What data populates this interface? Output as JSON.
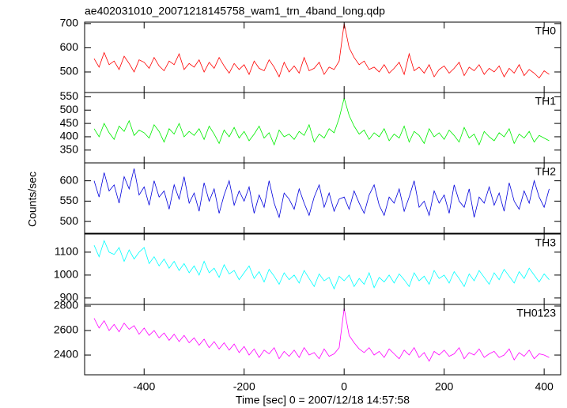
{
  "title": "ae402031010_20071218145758_wam1_trn_4band_long.qdp",
  "ylabel": "Counts/sec",
  "xlabel": "Time [sec] 0 = 2007/12/18 14:57:58",
  "chart_data": [
    {
      "type": "line",
      "xlim": [
        -519,
        433
      ],
      "ylim": [
        415,
        706
      ],
      "yticks": [
        500,
        600,
        700
      ],
      "x": [
        -500,
        -490,
        -480,
        -470,
        -460,
        -450,
        -440,
        -430,
        -420,
        -410,
        -400,
        -390,
        -380,
        -370,
        -360,
        -350,
        -340,
        -330,
        -320,
        -310,
        -300,
        -290,
        -280,
        -270,
        -260,
        -250,
        -240,
        -230,
        -220,
        -210,
        -200,
        -190,
        -180,
        -170,
        -160,
        -150,
        -140,
        -130,
        -120,
        -110,
        -100,
        -90,
        -80,
        -70,
        -60,
        -50,
        -40,
        -30,
        -20,
        -10,
        0,
        10,
        20,
        30,
        40,
        50,
        60,
        70,
        80,
        90,
        100,
        110,
        120,
        130,
        140,
        150,
        160,
        170,
        180,
        190,
        200,
        210,
        220,
        230,
        240,
        250,
        260,
        270,
        280,
        290,
        300,
        310,
        320,
        330,
        340,
        350,
        360,
        370,
        380,
        390,
        400,
        410
      ],
      "series": [
        {
          "name": "TH0",
          "color": "#ff0000",
          "values": [
            555,
            520,
            580,
            530,
            545,
            510,
            565,
            535,
            500,
            550,
            540,
            515,
            560,
            525,
            505,
            545,
            530,
            575,
            510,
            535,
            520,
            550,
            500,
            540,
            515,
            560,
            525,
            495,
            535,
            510,
            530,
            490,
            545,
            515,
            505,
            550,
            520,
            480,
            540,
            500,
            525,
            495,
            560,
            505,
            515,
            540,
            490,
            520,
            510,
            545,
            700,
            600,
            560,
            530,
            545,
            510,
            520,
            500,
            530,
            495,
            515,
            540,
            490,
            575,
            505,
            520,
            495,
            530,
            480,
            510,
            525,
            495,
            515,
            540,
            485,
            520,
            505,
            530,
            490,
            515,
            500,
            525,
            480,
            515,
            495,
            530,
            485,
            510,
            495,
            475,
            505,
            490
          ]
        }
      ]
    },
    {
      "type": "line",
      "xlim": [
        -519,
        433
      ],
      "ylim": [
        302,
        566
      ],
      "yticks": [
        350,
        400,
        450,
        500,
        550
      ],
      "x": [
        -500,
        -490,
        -480,
        -470,
        -460,
        -450,
        -440,
        -430,
        -420,
        -410,
        -400,
        -390,
        -380,
        -370,
        -360,
        -350,
        -340,
        -330,
        -320,
        -310,
        -300,
        -290,
        -280,
        -270,
        -260,
        -250,
        -240,
        -230,
        -220,
        -210,
        -200,
        -190,
        -180,
        -170,
        -160,
        -150,
        -140,
        -130,
        -120,
        -110,
        -100,
        -90,
        -80,
        -70,
        -60,
        -50,
        -40,
        -30,
        -20,
        -10,
        0,
        10,
        20,
        30,
        40,
        50,
        60,
        70,
        80,
        90,
        100,
        110,
        120,
        130,
        140,
        150,
        160,
        170,
        180,
        190,
        200,
        210,
        220,
        230,
        240,
        250,
        260,
        270,
        280,
        290,
        300,
        310,
        320,
        330,
        340,
        350,
        360,
        370,
        380,
        390,
        400,
        410
      ],
      "series": [
        {
          "name": "TH1",
          "color": "#00ee00",
          "values": [
            430,
            400,
            450,
            415,
            390,
            440,
            420,
            460,
            405,
            425,
            415,
            395,
            445,
            420,
            380,
            430,
            410,
            450,
            400,
            420,
            405,
            430,
            390,
            440,
            410,
            375,
            425,
            400,
            435,
            395,
            420,
            385,
            410,
            440,
            395,
            415,
            370,
            425,
            400,
            410,
            390,
            420,
            405,
            445,
            380,
            410,
            395,
            430,
            415,
            470,
            545,
            480,
            440,
            410,
            425,
            390,
            415,
            400,
            430,
            385,
            410,
            395,
            440,
            380,
            420,
            405,
            375,
            430,
            400,
            415,
            390,
            425,
            405,
            380,
            435,
            395,
            410,
            370,
            420,
            400,
            385,
            415,
            400,
            430,
            375,
            410,
            395,
            420,
            380,
            405,
            395,
            385
          ]
        }
      ]
    },
    {
      "type": "line",
      "xlim": [
        -519,
        433
      ],
      "ylim": [
        471,
        644
      ],
      "yticks": [
        500,
        550,
        600
      ],
      "x": [
        -500,
        -490,
        -480,
        -470,
        -460,
        -450,
        -440,
        -430,
        -420,
        -410,
        -400,
        -390,
        -380,
        -370,
        -360,
        -350,
        -340,
        -330,
        -320,
        -310,
        -300,
        -290,
        -280,
        -270,
        -260,
        -250,
        -240,
        -230,
        -220,
        -210,
        -200,
        -190,
        -180,
        -170,
        -160,
        -150,
        -140,
        -130,
        -120,
        -110,
        -100,
        -90,
        -80,
        -70,
        -60,
        -50,
        -40,
        -30,
        -20,
        -10,
        0,
        10,
        20,
        30,
        40,
        50,
        60,
        70,
        80,
        90,
        100,
        110,
        120,
        130,
        140,
        150,
        160,
        170,
        180,
        190,
        200,
        210,
        220,
        230,
        240,
        250,
        260,
        270,
        280,
        290,
        300,
        310,
        320,
        330,
        340,
        350,
        360,
        370,
        380,
        390,
        400,
        410
      ],
      "series": [
        {
          "name": "TH2",
          "color": "#0000dd",
          "values": [
            600,
            560,
            620,
            575,
            590,
            545,
            610,
            580,
            630,
            565,
            585,
            540,
            600,
            560,
            575,
            530,
            590,
            555,
            610,
            545,
            570,
            525,
            595,
            550,
            580,
            520,
            565,
            600,
            540,
            575,
            550,
            585,
            520,
            565,
            535,
            600,
            545,
            510,
            570,
            555,
            530,
            580,
            545,
            515,
            560,
            590,
            535,
            570,
            525,
            555,
            560,
            530,
            575,
            545,
            520,
            565,
            590,
            540,
            515,
            560,
            545,
            580,
            525,
            560,
            600,
            535,
            550,
            515,
            575,
            545,
            565,
            520,
            590,
            550,
            535,
            580,
            510,
            560,
            545,
            585,
            540,
            570,
            525,
            595,
            550,
            530,
            575,
            545,
            600,
            560,
            535,
            580
          ]
        }
      ]
    },
    {
      "type": "line",
      "xlim": [
        -519,
        433
      ],
      "ylim": [
        872,
        1179
      ],
      "yticks": [
        900,
        1000,
        1100
      ],
      "x": [
        -500,
        -490,
        -480,
        -470,
        -460,
        -450,
        -440,
        -430,
        -420,
        -410,
        -400,
        -390,
        -380,
        -370,
        -360,
        -350,
        -340,
        -330,
        -320,
        -310,
        -300,
        -290,
        -280,
        -270,
        -260,
        -250,
        -240,
        -230,
        -220,
        -210,
        -200,
        -190,
        -180,
        -170,
        -160,
        -150,
        -140,
        -130,
        -120,
        -110,
        -100,
        -90,
        -80,
        -70,
        -60,
        -50,
        -40,
        -30,
        -20,
        -10,
        0,
        10,
        20,
        30,
        40,
        50,
        60,
        70,
        80,
        90,
        100,
        110,
        120,
        130,
        140,
        150,
        160,
        170,
        180,
        190,
        200,
        210,
        220,
        230,
        240,
        250,
        260,
        270,
        280,
        290,
        300,
        310,
        320,
        330,
        340,
        350,
        360,
        370,
        380,
        390,
        400,
        410
      ],
      "series": [
        {
          "name": "TH3",
          "color": "#00ffff",
          "values": [
            1130,
            1080,
            1150,
            1100,
            1090,
            1120,
            1060,
            1110,
            1070,
            1100,
            1120,
            1050,
            1080,
            1040,
            1070,
            1030,
            1060,
            1020,
            1050,
            1010,
            1040,
            1000,
            1060,
            1010,
            1030,
            990,
            1045,
            1005,
            1020,
            980,
            1010,
            1040,
            985,
            1015,
            970,
            1025,
            995,
            960,
            1010,
            980,
            1000,
            965,
            1020,
            985,
            950,
            1005,
            975,
            990,
            940,
            995,
            975,
            1000,
            950,
            985,
            960,
            1010,
            945,
            990,
            970,
            1000,
            965,
            1005,
            980,
            950,
            1010,
            975,
            995,
            960,
            1020,
            985,
            1000,
            965,
            1015,
            985,
            950,
            1005,
            975,
            1020,
            990,
            960,
            1010,
            980,
            1025,
            995,
            965,
            1015,
            985,
            1030,
            1000,
            970,
            1005,
            980
          ]
        }
      ]
    },
    {
      "type": "line",
      "xlim": [
        -519,
        433
      ],
      "ylim": [
        2239,
        2813
      ],
      "yticks": [
        2400,
        2600,
        2800
      ],
      "xticks": [
        -400,
        -200,
        0,
        200,
        400
      ],
      "x": [
        -500,
        -490,
        -480,
        -470,
        -460,
        -450,
        -440,
        -430,
        -420,
        -410,
        -400,
        -390,
        -380,
        -370,
        -360,
        -350,
        -340,
        -330,
        -320,
        -310,
        -300,
        -290,
        -280,
        -270,
        -260,
        -250,
        -240,
        -230,
        -220,
        -210,
        -200,
        -190,
        -180,
        -170,
        -160,
        -150,
        -140,
        -130,
        -120,
        -110,
        -100,
        -90,
        -80,
        -70,
        -60,
        -50,
        -40,
        -30,
        -20,
        -10,
        0,
        10,
        20,
        30,
        40,
        50,
        60,
        70,
        80,
        90,
        100,
        110,
        120,
        130,
        140,
        150,
        160,
        170,
        180,
        190,
        200,
        210,
        220,
        230,
        240,
        250,
        260,
        270,
        280,
        290,
        300,
        310,
        320,
        330,
        340,
        350,
        360,
        370,
        380,
        390,
        400,
        410
      ],
      "series": [
        {
          "name": "TH0123",
          "color": "#ff00ff",
          "values": [
            2700,
            2620,
            2680,
            2600,
            2650,
            2590,
            2660,
            2610,
            2640,
            2570,
            2620,
            2560,
            2600,
            2540,
            2580,
            2520,
            2570,
            2510,
            2560,
            2500,
            2540,
            2480,
            2530,
            2460,
            2510,
            2450,
            2500,
            2440,
            2490,
            2420,
            2470,
            2400,
            2450,
            2380,
            2440,
            2410,
            2460,
            2370,
            2430,
            2390,
            2440,
            2380,
            2460,
            2400,
            2420,
            2370,
            2450,
            2390,
            2410,
            2460,
            2780,
            2560,
            2500,
            2450,
            2420,
            2460,
            2400,
            2430,
            2380,
            2450,
            2410,
            2370,
            2440,
            2400,
            2460,
            2380,
            2420,
            2350,
            2430,
            2400,
            2440,
            2390,
            2410,
            2460,
            2370,
            2420,
            2400,
            2450,
            2380,
            2410,
            2430,
            2380,
            2400,
            2450,
            2360,
            2420,
            2390,
            2440,
            2370,
            2410,
            2400,
            2380
          ]
        }
      ]
    }
  ]
}
